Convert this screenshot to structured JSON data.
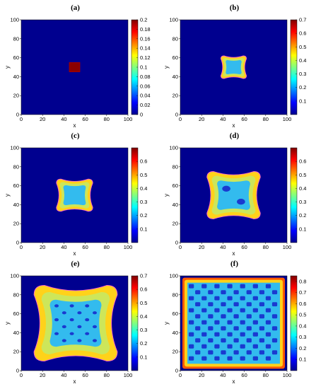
{
  "colors": {
    "background": "#ffffff",
    "field_low": "#00008f",
    "field_colormap": [
      "#00008f",
      "#0000ff",
      "#0080ff",
      "#00ffff",
      "#80ff80",
      "#ffff00",
      "#ff8000",
      "#ff0000",
      "#800000"
    ],
    "interface_contour": "#ff66cc"
  },
  "chart_data": [
    {
      "type": "heatmap",
      "label": "(a)",
      "xlabel": "x",
      "ylabel": "y",
      "xlim": [
        0,
        100
      ],
      "ylim": [
        0,
        100
      ],
      "xticks": [
        "0",
        "20",
        "40",
        "60",
        "80",
        "100"
      ],
      "yticks": [
        "0",
        "20",
        "40",
        "60",
        "80",
        "100"
      ],
      "colorbar": {
        "range": [
          0,
          0.2
        ],
        "ticks": [
          "0",
          "0.02",
          "0.04",
          "0.06",
          "0.08",
          "0.1",
          "0.12",
          "0.14",
          "0.16",
          "0.18",
          "0.2"
        ]
      },
      "pattern": {
        "shape": "square",
        "x_range": [
          45,
          55
        ],
        "y_range": [
          45,
          55
        ],
        "value": 0.2,
        "background_value": 0
      }
    },
    {
      "type": "heatmap",
      "label": "(b)",
      "xlabel": "x",
      "ylabel": "y",
      "xlim": [
        0,
        100
      ],
      "ylim": [
        0,
        100
      ],
      "xticks": [
        "0",
        "20",
        "40",
        "60",
        "80",
        "100"
      ],
      "yticks": [
        "0",
        "20",
        "40",
        "60",
        "80",
        "100"
      ],
      "colorbar": {
        "range": [
          0,
          0.7
        ],
        "ticks": [
          "0.1",
          "0.2",
          "0.3",
          "0.4",
          "0.5",
          "0.6",
          "0.7"
        ]
      },
      "pattern": {
        "shape": "four-lobed",
        "x_range": [
          38,
          62
        ],
        "y_range": [
          38,
          62
        ],
        "core_value": 0.35,
        "rim_value": 0.62
      }
    },
    {
      "type": "heatmap",
      "label": "(c)",
      "xlabel": "x",
      "ylabel": "y",
      "xlim": [
        0,
        100
      ],
      "ylim": [
        0,
        100
      ],
      "xticks": [
        "0",
        "20",
        "40",
        "60",
        "80",
        "100"
      ],
      "yticks": [
        "0",
        "20",
        "40",
        "60",
        "80",
        "100"
      ],
      "colorbar": {
        "range": [
          0,
          0.7
        ],
        "ticks": [
          "0.1",
          "0.2",
          "0.3",
          "0.4",
          "0.5",
          "0.6"
        ]
      },
      "pattern": {
        "shape": "four-lobed",
        "x_range": [
          33,
          67
        ],
        "y_range": [
          33,
          67
        ],
        "core_value": 0.33,
        "rim_value": 0.6
      }
    },
    {
      "type": "heatmap",
      "label": "(d)",
      "xlabel": "x",
      "ylabel": "y",
      "xlim": [
        0,
        100
      ],
      "ylim": [
        0,
        100
      ],
      "xticks": [
        "0",
        "20",
        "40",
        "60",
        "80",
        "100"
      ],
      "yticks": [
        "0",
        "20",
        "40",
        "60",
        "80",
        "100"
      ],
      "colorbar": {
        "range": [
          0,
          0.7
        ],
        "ticks": [
          "0.1",
          "0.2",
          "0.3",
          "0.4",
          "0.5",
          "0.6"
        ]
      },
      "pattern": {
        "shape": "four-lobed",
        "x_range": [
          25,
          75
        ],
        "y_range": [
          25,
          75
        ],
        "core_value": 0.3,
        "rim_value": 0.62
      }
    },
    {
      "type": "heatmap",
      "label": "(e)",
      "xlabel": "x",
      "ylabel": "y",
      "xlim": [
        0,
        100
      ],
      "ylim": [
        0,
        100
      ],
      "xticks": [
        "0",
        "20",
        "40",
        "60",
        "80",
        "100"
      ],
      "yticks": [
        "0",
        "20",
        "40",
        "60",
        "80",
        "100"
      ],
      "colorbar": {
        "range": [
          0,
          0.7
        ],
        "ticks": [
          "0.1",
          "0.2",
          "0.3",
          "0.4",
          "0.5",
          "0.6",
          "0.7"
        ]
      },
      "pattern": {
        "shape": "four-lobed",
        "x_range": [
          12,
          90
        ],
        "y_range": [
          10,
          90
        ],
        "core_value": 0.3,
        "rim_value": 0.6
      }
    },
    {
      "type": "heatmap",
      "label": "(f)",
      "xlabel": "x",
      "ylabel": "y",
      "xlim": [
        0,
        100
      ],
      "ylim": [
        0,
        100
      ],
      "xticks": [
        "0",
        "20",
        "40",
        "60",
        "80",
        "100"
      ],
      "yticks": [
        "0",
        "20",
        "40",
        "60",
        "80",
        "100"
      ],
      "colorbar": {
        "range": [
          0,
          0.85
        ],
        "ticks": [
          "0.1",
          "0.2",
          "0.3",
          "0.4",
          "0.5",
          "0.6",
          "0.7",
          "0.8"
        ]
      },
      "pattern": {
        "shape": "square-filled",
        "x_range": [
          2,
          98
        ],
        "y_range": [
          2,
          98
        ],
        "core_value": 0.35,
        "rim_value": 0.8
      }
    }
  ]
}
